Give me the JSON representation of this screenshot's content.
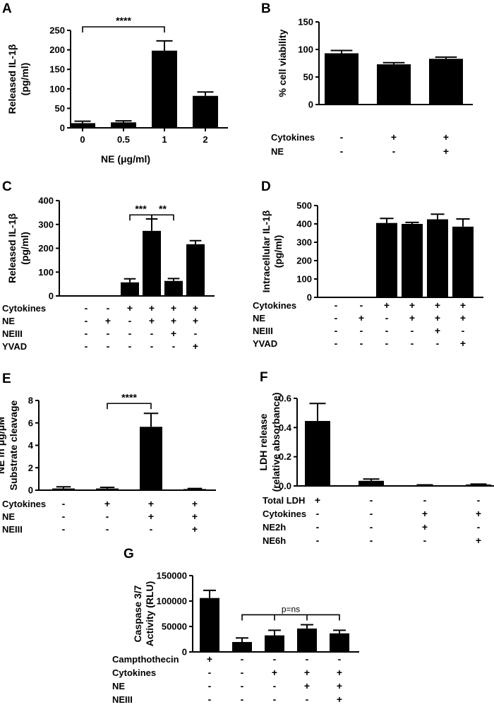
{
  "chart_data": [
    {
      "panel": "A",
      "type": "bar",
      "categories": [
        "0",
        "0.5",
        "1",
        "2"
      ],
      "values": [
        12,
        14,
        198,
        82
      ],
      "errors": [
        5,
        4,
        25,
        10
      ],
      "ylabel_lines": [
        "Released IL-1β",
        "(pg/ml)"
      ],
      "xlabel": "NE (μg/ml)",
      "ylim": [
        0,
        250
      ],
      "yticks": [
        "0",
        "50",
        "100",
        "150",
        "200",
        "250"
      ],
      "conditions": [],
      "sig": [
        {
          "from": 0,
          "to": 2,
          "label": "****"
        }
      ]
    },
    {
      "panel": "B",
      "type": "bar",
      "categories": [
        "1",
        "2",
        "3"
      ],
      "values": [
        93,
        73,
        83
      ],
      "errors": [
        5,
        3,
        3
      ],
      "ylabel_lines": [
        "% cell viability"
      ],
      "xlabel": "",
      "ylim": [
        0,
        150
      ],
      "yticks": [
        "0",
        "50",
        "100",
        "150"
      ],
      "conditions": [
        {
          "label": "Cytokines",
          "signs": [
            "-",
            "+",
            "+"
          ]
        },
        {
          "label": "NE",
          "signs": [
            "-",
            "-",
            "+"
          ]
        }
      ],
      "sig": []
    },
    {
      "panel": "C",
      "type": "bar",
      "categories": [
        "1",
        "2",
        "3",
        "4",
        "5",
        "6"
      ],
      "values": [
        0,
        0,
        57,
        273,
        63,
        217
      ],
      "errors": [
        0,
        0,
        15,
        50,
        10,
        15
      ],
      "ylabel_lines": [
        "Released IL-1β",
        "(pg/ml)"
      ],
      "xlabel": "",
      "ylim": [
        0,
        400
      ],
      "yticks": [
        "0",
        "100",
        "200",
        "300",
        "400"
      ],
      "conditions": [
        {
          "label": "Cytokines",
          "signs": [
            "-",
            "-",
            "+",
            "+",
            "+",
            "+"
          ]
        },
        {
          "label": "NE",
          "signs": [
            "-",
            "+",
            "-",
            "+",
            "+",
            "+"
          ]
        },
        {
          "label": "NEIII",
          "signs": [
            "-",
            "-",
            "-",
            "-",
            "+",
            "-"
          ]
        },
        {
          "label": "YVAD",
          "signs": [
            "-",
            "-",
            "-",
            "-",
            "-",
            "+"
          ]
        }
      ],
      "sig": [
        {
          "from": 2,
          "to": 3,
          "label": "***"
        },
        {
          "from": 3,
          "to": 4,
          "label": "**"
        }
      ]
    },
    {
      "panel": "D",
      "type": "bar",
      "categories": [
        "1",
        "2",
        "3",
        "4",
        "5",
        "6"
      ],
      "values": [
        0,
        0,
        405,
        400,
        425,
        385
      ],
      "errors": [
        0,
        0,
        25,
        8,
        28,
        42
      ],
      "ylabel_lines": [
        "Intracellular IL-1β",
        "(pg/ml)"
      ],
      "xlabel": "",
      "ylim": [
        0,
        500
      ],
      "yticks": [
        "0",
        "100",
        "200",
        "300",
        "400",
        "500"
      ],
      "conditions": [
        {
          "label": "Cytokines",
          "signs": [
            "-",
            "-",
            "+",
            "+",
            "+",
            "+"
          ]
        },
        {
          "label": "NE",
          "signs": [
            "-",
            "+",
            "-",
            "+",
            "+",
            "+"
          ]
        },
        {
          "label": "NEIII",
          "signs": [
            "-",
            "-",
            "-",
            "-",
            "+",
            "-"
          ]
        },
        {
          "label": "YVAD",
          "signs": [
            "-",
            "-",
            "-",
            "-",
            "-",
            "+"
          ]
        }
      ],
      "sig": []
    },
    {
      "panel": "E",
      "type": "bar",
      "categories": [
        "1",
        "2",
        "3",
        "4"
      ],
      "values": [
        0.15,
        0.15,
        5.65,
        0.1
      ],
      "errors": [
        0.15,
        0.1,
        1.2,
        0.05
      ],
      "ylabel_lines": [
        "NE in μg/μM",
        "Substrate cleavage"
      ],
      "xlabel": "",
      "ylim": [
        0,
        8
      ],
      "yticks": [
        "0",
        "2",
        "4",
        "6",
        "8"
      ],
      "conditions": [
        {
          "label": "Cytokines",
          "signs": [
            "-",
            "+",
            "+",
            "+"
          ]
        },
        {
          "label": "NE",
          "signs": [
            "-",
            "-",
            "+",
            "+"
          ]
        },
        {
          "label": "NEIII",
          "signs": [
            "-",
            "-",
            "-",
            "+"
          ]
        }
      ],
      "sig": [
        {
          "from": 1,
          "to": 2,
          "label": "****"
        }
      ]
    },
    {
      "panel": "F",
      "type": "bar",
      "categories": [
        "1",
        "2",
        "3",
        "4"
      ],
      "values": [
        0.445,
        0.035,
        0.005,
        0.01
      ],
      "errors": [
        0.12,
        0.012,
        0.002,
        0.003
      ],
      "ylabel_lines": [
        "LDH release",
        "(relative absorbance)"
      ],
      "xlabel": "",
      "ylim": [
        0,
        0.6
      ],
      "yticks": [
        "0.0",
        "0.2",
        "0.4",
        "0.6"
      ],
      "conditions": [
        {
          "label": "Total LDH",
          "signs": [
            "+",
            "-",
            "-",
            "-"
          ]
        },
        {
          "label": "Cytokines",
          "signs": [
            "-",
            "-",
            "+",
            "+"
          ]
        },
        {
          "label": "NE2h",
          "signs": [
            "-",
            "-",
            "+",
            "-"
          ]
        },
        {
          "label": "NE6h",
          "signs": [
            "-",
            "-",
            "-",
            "+"
          ]
        }
      ],
      "sig": []
    },
    {
      "panel": "G",
      "type": "bar",
      "categories": [
        "1",
        "2",
        "3",
        "4",
        "5"
      ],
      "values": [
        106000,
        19500,
        32500,
        46000,
        36500
      ],
      "errors": [
        15000,
        8000,
        10000,
        7500,
        6000
      ],
      "ylabel_lines": [
        "Caspase 3/7",
        "Activity (RLU)"
      ],
      "xlabel": "",
      "ylim": [
        0,
        150000
      ],
      "yticks": [
        "0",
        "50000",
        "100000",
        "150000"
      ],
      "conditions": [
        {
          "label": "Campthothecin",
          "signs": [
            "+",
            "-",
            "-",
            "-",
            "-"
          ]
        },
        {
          "label": "Cytokines",
          "signs": [
            "-",
            "-",
            "+",
            "+",
            "+"
          ]
        },
        {
          "label": "NE",
          "signs": [
            "-",
            "-",
            "-",
            "+",
            "+"
          ]
        },
        {
          "label": "NEIII",
          "signs": [
            "-",
            "-",
            "-",
            "-",
            "+"
          ]
        }
      ],
      "sig": [
        {
          "from": 1,
          "to": 4,
          "label": "p=ns",
          "multi": true
        }
      ]
    }
  ]
}
